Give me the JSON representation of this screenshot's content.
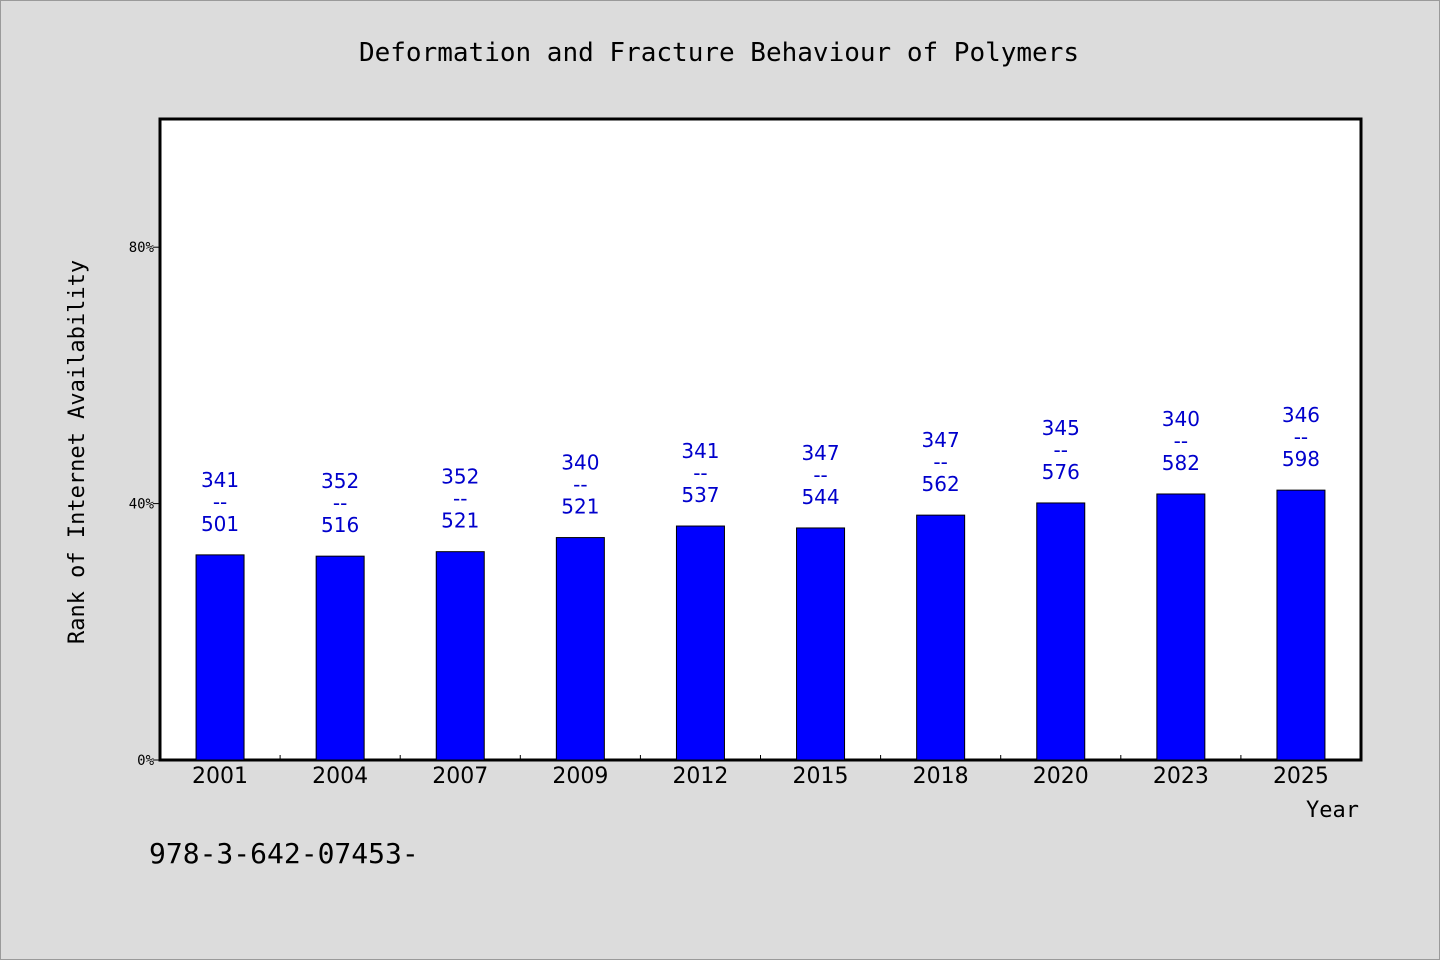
{
  "footer_text": "978-3-642-07453-",
  "colors": {
    "bar": "#0000ff",
    "label": "#0000cc",
    "background": "#dcdcdc",
    "plot_bg": "#ffffff"
  },
  "chart_data": {
    "type": "bar",
    "title": "Deformation and Fracture Behaviour of Polymers",
    "xlabel": "Year",
    "ylabel": "Rank of Internet Availability",
    "categories": [
      "2001",
      "2004",
      "2007",
      "2009",
      "2012",
      "2015",
      "2018",
      "2020",
      "2023",
      "2025"
    ],
    "values": [
      32.0,
      31.8,
      32.5,
      34.7,
      36.5,
      36.2,
      38.2,
      40.1,
      41.5,
      42.1
    ],
    "data_labels": [
      [
        "341",
        "--",
        "501"
      ],
      [
        "352",
        "--",
        "516"
      ],
      [
        "352",
        "--",
        "521"
      ],
      [
        "340",
        "--",
        "521"
      ],
      [
        "341",
        "--",
        "537"
      ],
      [
        "347",
        "--",
        "544"
      ],
      [
        "347",
        "--",
        "562"
      ],
      [
        "345",
        "--",
        "576"
      ],
      [
        "340",
        "--",
        "582"
      ],
      [
        "346",
        "--",
        "598"
      ]
    ],
    "ylim": [
      0,
      100
    ],
    "yticks": [
      0,
      40,
      80
    ],
    "ytick_labels": [
      "0%",
      "40%",
      "80%"
    ],
    "grid": false,
    "legend": false
  }
}
